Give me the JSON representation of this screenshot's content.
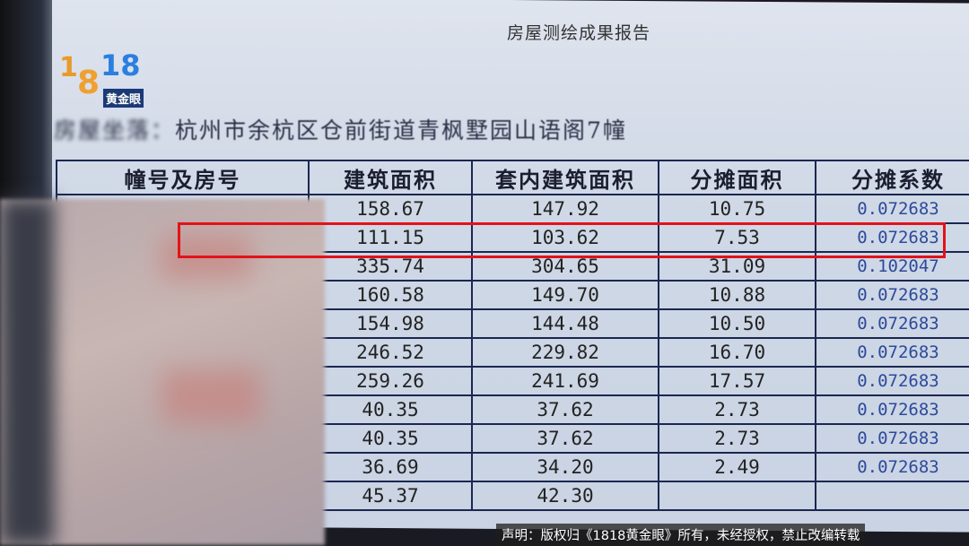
{
  "report_title": "房屋测绘成果报告",
  "address_label": "房屋坐落：",
  "address": "杭州市余杭区仓前街道青枫墅园山语阁7幢",
  "table": {
    "headers": [
      "幢号及房号",
      "建筑面积",
      "套内建筑面积",
      "分摊面积",
      "分摊系数"
    ],
    "rows": [
      [
        "",
        "158.67",
        "147.92",
        "10.75",
        "0.072683"
      ],
      [
        "",
        "111.15",
        "103.62",
        "7.53",
        "0.072683"
      ],
      [
        "",
        "335.74",
        "304.65",
        "31.09",
        "0.102047"
      ],
      [
        "",
        "160.58",
        "149.70",
        "10.88",
        "0.072683"
      ],
      [
        "",
        "154.98",
        "144.48",
        "10.50",
        "0.072683"
      ],
      [
        "",
        "246.52",
        "229.82",
        "16.70",
        "0.072683"
      ],
      [
        "",
        "259.26",
        "241.69",
        "17.57",
        "0.072683"
      ],
      [
        "",
        "40.35",
        "37.62",
        "2.73",
        "0.072683"
      ],
      [
        "",
        "40.35",
        "37.62",
        "2.73",
        "0.072683"
      ],
      [
        "",
        "36.69",
        "34.20",
        "2.49",
        "0.072683"
      ],
      [
        "",
        "45.37",
        "42.30",
        "",
        ""
      ]
    ],
    "highlighted_row": 1
  },
  "logo": {
    "text": "1818",
    "tag": "黄金眼"
  },
  "copyright_notice": "声明：版权归《1818黄金眼》所有，未经授权，禁止改编转载",
  "colors": {
    "highlight": "#e3121a",
    "table_border": "#1b2750",
    "coefficient_text": "#2d4a9a"
  }
}
